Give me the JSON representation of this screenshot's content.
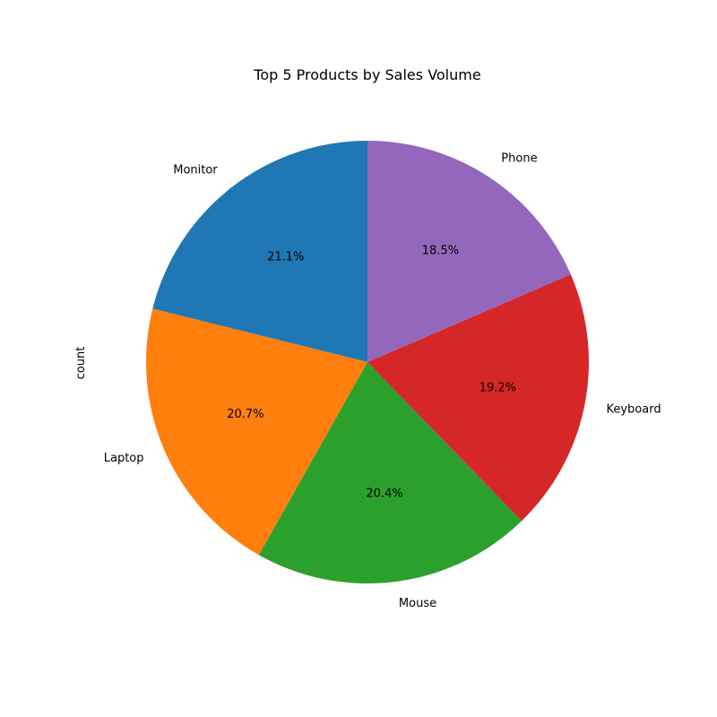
{
  "chart_data": {
    "type": "pie",
    "title": "Top 5 Products by Sales Volume",
    "ylabel": "count",
    "start_angle_deg": 90,
    "direction": "counterclockwise",
    "slices": [
      {
        "label": "Monitor",
        "percent": 21.1,
        "pct_label": "21.1%",
        "color": "#1f77b4"
      },
      {
        "label": "Laptop",
        "percent": 20.7,
        "pct_label": "20.7%",
        "color": "#ff7f0e"
      },
      {
        "label": "Mouse",
        "percent": 20.4,
        "pct_label": "20.4%",
        "color": "#2ca02c"
      },
      {
        "label": "Keyboard",
        "percent": 19.2,
        "pct_label": "19.2%",
        "color": "#d62728"
      },
      {
        "label": "Phone",
        "percent": 18.5,
        "pct_label": "18.5%",
        "color": "#9467bd"
      }
    ]
  }
}
